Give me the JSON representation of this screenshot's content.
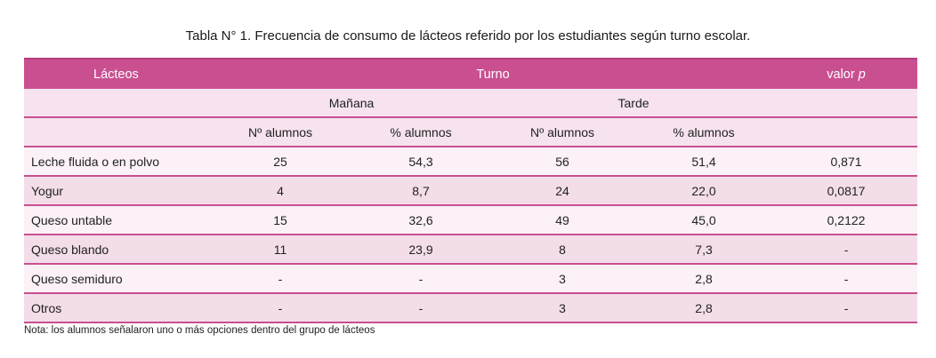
{
  "caption": "Tabla N° 1. Frecuencia de consumo de lácteos referido por los estudiantes según turno escolar.",
  "header": {
    "lacteos": "Lácteos",
    "turno": "Turno",
    "valor": "valor",
    "valor_p": "p",
    "manana": "Mañana",
    "tarde": "Tarde",
    "n_alumnos_m": "Nº alumnos",
    "pct_alumnos_m": "% alumnos",
    "n_alumnos_t": "Nº alumnos",
    "pct_alumnos_t": "% alumnos"
  },
  "rows": [
    {
      "name": "Leche fluida o en polvo",
      "m_n": "25",
      "m_pct": "54,3",
      "t_n": "56",
      "t_pct": "51,4",
      "p": "0,871"
    },
    {
      "name": "Yogur",
      "m_n": "4",
      "m_pct": "8,7",
      "t_n": "24",
      "t_pct": "22,0",
      "p": "0,0817"
    },
    {
      "name": "Queso untable",
      "m_n": "15",
      "m_pct": "32,6",
      "t_n": "49",
      "t_pct": "45,0",
      "p": "0,2122"
    },
    {
      "name": "Queso blando",
      "m_n": "11",
      "m_pct": "23,9",
      "t_n": "8",
      "t_pct": "7,3",
      "p": "-"
    },
    {
      "name": "Queso semiduro",
      "m_n": "-",
      "m_pct": "-",
      "t_n": "3",
      "t_pct": "2,8",
      "p": "-"
    },
    {
      "name": "Otros",
      "m_n": "-",
      "m_pct": "-",
      "t_n": "3",
      "t_pct": "2,8",
      "p": "-"
    }
  ],
  "note": "Nota: los alumnos señalaron uno o más opciones dentro del grupo de lácteos",
  "colors": {
    "header_bg": "#c94f91",
    "row_light": "#fbf1f7",
    "row_dark": "#f3dde9",
    "rule": "#c94f91"
  }
}
